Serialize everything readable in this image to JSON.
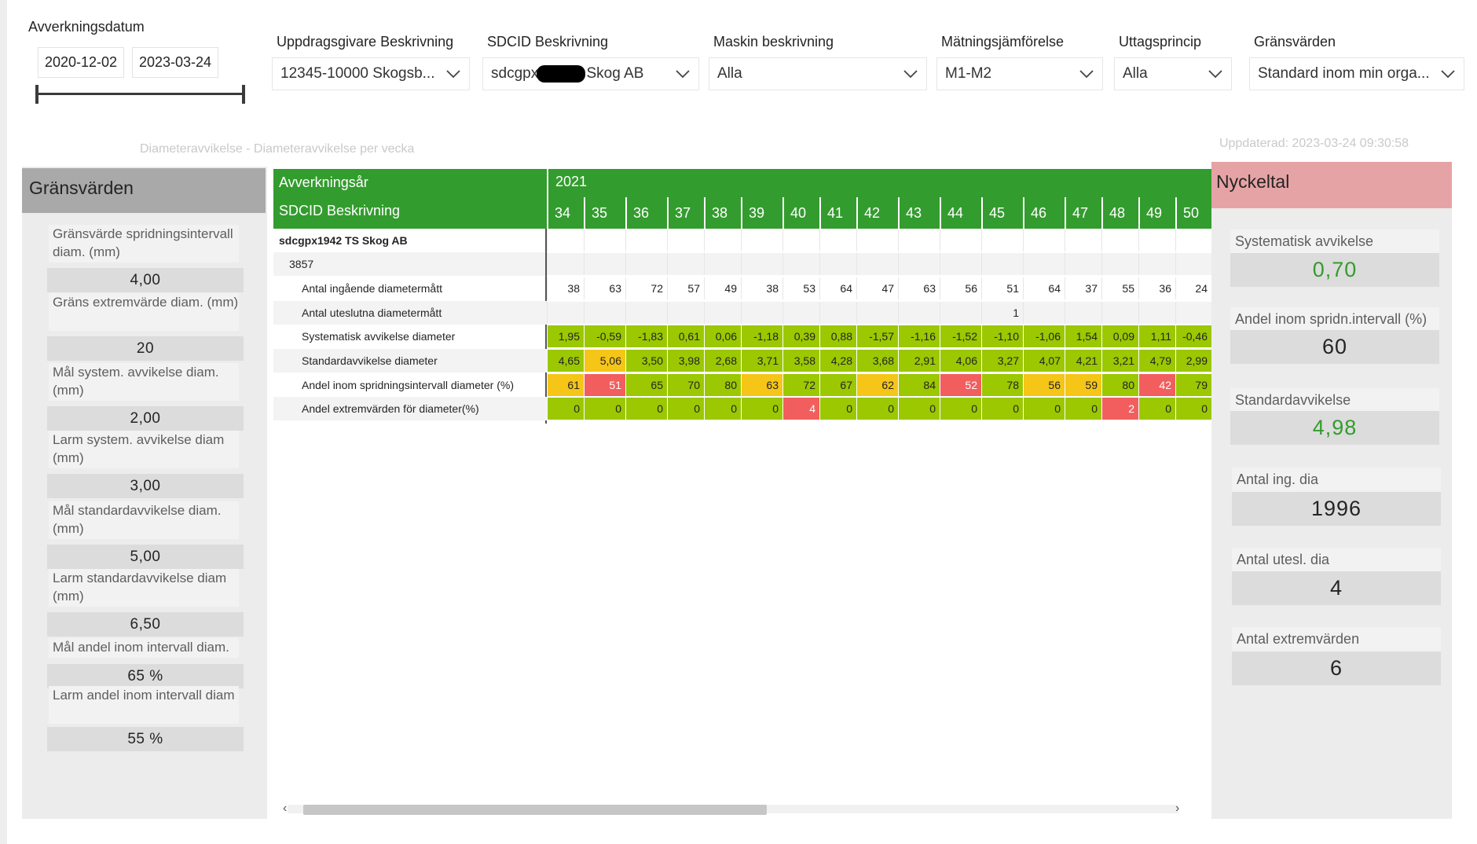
{
  "date_slicer": {
    "title": "Avverkningsdatum",
    "start": "2020-12-02",
    "end": "2023-03-24"
  },
  "slicers": [
    {
      "title": "Uppdragsgivare Beskrivning",
      "value": "12345-10000 Skogsb..."
    },
    {
      "title": "SDCID Beskrivning",
      "value_prefix": "sdcgpx",
      "value_suffix": "Skog AB"
    },
    {
      "title": "Maskin beskrivning",
      "value": "Alla"
    },
    {
      "title": "Mätningsjämförelse",
      "value": "M1-M2"
    },
    {
      "title": "Uttagsprincip",
      "value": "Alla"
    },
    {
      "title": "Gränsvärden",
      "value": "Standard inom min orga..."
    }
  ],
  "subtitle": "Diameteravvikelse - Diameteravvikelse per vecka",
  "updated": "Uppdaterad: 2023-03-24 09:30:58",
  "limits": {
    "header": "Gränsvärden",
    "items": [
      {
        "label": "Gränsvärde spridningsintervall diam. (mm)",
        "value": "4,00"
      },
      {
        "label": "Gräns extremvärde diam. (mm)",
        "value": "20"
      },
      {
        "label": "Mål system. avvikelse diam. (mm)",
        "value": "2,00"
      },
      {
        "label": "Larm system. avvikelse diam (mm)",
        "value": "3,00"
      },
      {
        "label": "Mål standardavvikelse diam. (mm)",
        "value": "5,00"
      },
      {
        "label": "Larm standardavvikelse diam (mm)",
        "value": "6,50"
      },
      {
        "label": "Mål andel inom intervall diam.",
        "value": "65 %"
      },
      {
        "label": "Larm andel inom intervall diam",
        "value": "55 %"
      }
    ]
  },
  "matrix": {
    "year_header": "Avverkningsår",
    "year": "2021",
    "row_header": "SDCID Beskrivning",
    "weeks": [
      "34",
      "35",
      "36",
      "37",
      "38",
      "39",
      "40",
      "41",
      "42",
      "43",
      "44",
      "45",
      "46",
      "47",
      "48",
      "49",
      "50"
    ],
    "group_label": "sdcgpx1942 TS Skog AB",
    "sub_label": "3857",
    "rows": [
      {
        "label": "Antal ingående diametermått",
        "values": [
          "38",
          "63",
          "72",
          "57",
          "49",
          "38",
          "53",
          "64",
          "47",
          "63",
          "56",
          "51",
          "64",
          "37",
          "55",
          "36",
          "24"
        ],
        "colors": [
          "n",
          "n",
          "n",
          "n",
          "n",
          "n",
          "n",
          "n",
          "n",
          "n",
          "n",
          "n",
          "n",
          "n",
          "n",
          "n",
          "n"
        ]
      },
      {
        "label": "Antal uteslutna diametermått",
        "values": [
          "",
          "",
          "",
          "",
          "",
          "",
          "",
          "",
          "",
          "",
          "",
          "1",
          "",
          "",
          "",
          "",
          ""
        ],
        "colors": [
          "n",
          "n",
          "n",
          "n",
          "n",
          "n",
          "n",
          "n",
          "n",
          "n",
          "n",
          "n",
          "n",
          "n",
          "n",
          "n",
          "n"
        ]
      },
      {
        "label": "Systematisk avvikelse diameter",
        "values": [
          "1,95",
          "-0,59",
          "-1,83",
          "0,61",
          "0,06",
          "-1,18",
          "0,39",
          "0,88",
          "-1,57",
          "-1,16",
          "-1,52",
          "-1,10",
          "-1,06",
          "1,54",
          "0,09",
          "1,11",
          "-0,46"
        ],
        "colors": [
          "g",
          "g",
          "g",
          "g",
          "g",
          "g",
          "g",
          "g",
          "g",
          "g",
          "g",
          "g",
          "g",
          "g",
          "g",
          "g",
          "g"
        ]
      },
      {
        "label": "Standardavvikelse diameter",
        "values": [
          "4,65",
          "5,06",
          "3,50",
          "3,98",
          "2,68",
          "3,71",
          "3,58",
          "4,28",
          "3,68",
          "2,91",
          "4,06",
          "3,27",
          "4,07",
          "4,21",
          "3,21",
          "4,79",
          "2,99"
        ],
        "colors": [
          "g",
          "y",
          "g",
          "g",
          "g",
          "g",
          "g",
          "g",
          "g",
          "g",
          "g",
          "g",
          "g",
          "g",
          "g",
          "g",
          "g"
        ]
      },
      {
        "label": "Andel inom spridningsintervall diameter (%)",
        "values": [
          "61",
          "51",
          "65",
          "70",
          "80",
          "63",
          "72",
          "67",
          "62",
          "84",
          "52",
          "78",
          "56",
          "59",
          "80",
          "42",
          "79"
        ],
        "colors": [
          "y",
          "r",
          "g",
          "g",
          "g",
          "y",
          "g",
          "g",
          "y",
          "g",
          "r",
          "g",
          "y",
          "y",
          "g",
          "r",
          "g"
        ]
      },
      {
        "label": "Andel extremvärden för diameter(%)",
        "values": [
          "0",
          "0",
          "0",
          "0",
          "0",
          "0",
          "4",
          "0",
          "0",
          "0",
          "0",
          "0",
          "0",
          "0",
          "2",
          "0",
          "0"
        ],
        "colors": [
          "g",
          "g",
          "g",
          "g",
          "g",
          "g",
          "r",
          "g",
          "g",
          "g",
          "g",
          "g",
          "g",
          "g",
          "r",
          "g",
          "g"
        ]
      }
    ],
    "status_colors": {
      "g": "#9bc800",
      "y": "#f5c518",
      "r": "#f25e5e",
      "n": "transparent"
    }
  },
  "kpis": {
    "header": "Nyckeltal",
    "items": [
      {
        "label": "Systematisk avvikelse",
        "value": "0,70",
        "color": "#339c2e"
      },
      {
        "label": "Andel inom spridn.intervall (%)",
        "value": "60",
        "color": "#252423"
      },
      {
        "label": "Standardavvikelse",
        "value": "4,98",
        "color": "#339c2e"
      },
      {
        "label": "Antal ing. dia",
        "value": "1996",
        "color": "#252423"
      },
      {
        "label": "Antal utesl. dia",
        "value": "4",
        "color": "#252423"
      },
      {
        "label": "Antal extremvärden",
        "value": "6",
        "color": "#252423"
      }
    ]
  }
}
